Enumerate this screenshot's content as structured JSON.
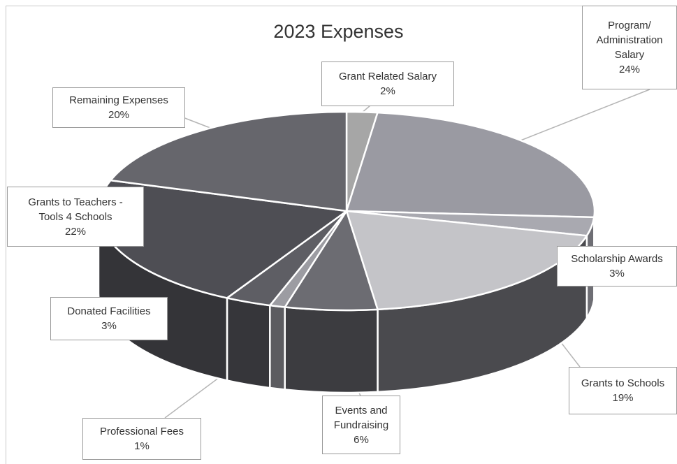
{
  "chart_data": {
    "type": "pie",
    "title": "2023 Expenses",
    "slices": [
      {
        "label": "Grant Related Salary",
        "value": 2,
        "value_label": "2%",
        "color": "#a6a6a6",
        "side": "#6e6e6e"
      },
      {
        "label": "Program/ Administration Salary",
        "value": 24,
        "value_label": "24%",
        "color": "#9a9aa2",
        "side": "#6a6a72"
      },
      {
        "label": "Scholarship Awards",
        "value": 3,
        "value_label": "3%",
        "color": "#a9a9b0",
        "side": "#6e6e74"
      },
      {
        "label": "Grants to Schools",
        "value": 19,
        "value_label": "19%",
        "color": "#c4c4c8",
        "side": "#4a4a4e"
      },
      {
        "label": "Events and Fundraising",
        "value": 6,
        "value_label": "6%",
        "color": "#6c6c72",
        "side": "#3c3c40"
      },
      {
        "label": "Professional Fees",
        "value": 1,
        "value_label": "1%",
        "color": "#9c9ca2",
        "side": "#5c5c60"
      },
      {
        "label": "Donated Facilities",
        "value": 3,
        "value_label": "3%",
        "color": "#5e5e64",
        "side": "#36363a"
      },
      {
        "label": "Grants to Teachers - Tools 4 Schools",
        "value": 22,
        "value_label": "22%",
        "color": "#4e4e54",
        "side": "#343438"
      },
      {
        "label": "Remaining Expenses",
        "value": 20,
        "value_label": "20%",
        "color": "#66666c",
        "side": "#3e3e42"
      }
    ],
    "label_lines": {
      "0": [
        "Grant Related Salary"
      ],
      "1": [
        "Program/",
        "Administration",
        "Salary"
      ],
      "2": [
        "Scholarship Awards"
      ],
      "3": [
        "Grants to Schools"
      ],
      "4": [
        "Events and",
        "Fundraising"
      ],
      "5": [
        "Professional Fees"
      ],
      "6": [
        "Donated Facilities"
      ],
      "7": [
        "Grants to Teachers -",
        "Tools 4 Schools"
      ],
      "8": [
        "Remaining Expenses"
      ]
    },
    "legend": "none",
    "style": "3d-pie-with-callouts"
  }
}
